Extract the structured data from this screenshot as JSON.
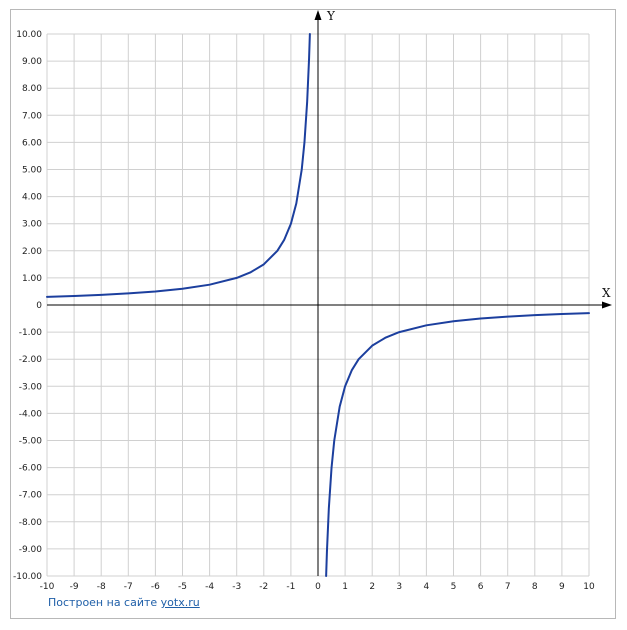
{
  "chart_data": {
    "type": "line",
    "title": "",
    "xlabel": "X",
    "ylabel": "Y",
    "xlim": [
      -10,
      10
    ],
    "ylim": [
      -10,
      10
    ],
    "grid": true,
    "x_ticks": [
      "-10",
      "-9",
      "-8",
      "-7",
      "-6",
      "-5",
      "-4",
      "-3",
      "-2",
      "-1",
      "0",
      "1",
      "2",
      "3",
      "4",
      "5",
      "6",
      "7",
      "8",
      "9",
      "10"
    ],
    "y_ticks": [
      "10.00",
      "9.00",
      "8.00",
      "7.00",
      "6.00",
      "5.00",
      "4.00",
      "3.00",
      "2.00",
      "1.00",
      "0",
      "-1.00",
      "-2.00",
      "-3.00",
      "-4.00",
      "-5.00",
      "-6.00",
      "-7.00",
      "-8.00",
      "-9.00",
      "-10.00"
    ],
    "series": [
      {
        "color": "#1c3f9e",
        "segments": [
          [
            [
              -10,
              0.3
            ],
            [
              -9,
              0.333
            ],
            [
              -8,
              0.375
            ],
            [
              -7,
              0.429
            ],
            [
              -6,
              0.5
            ],
            [
              -5,
              0.6
            ],
            [
              -4,
              0.75
            ],
            [
              -3,
              1.0
            ],
            [
              -2.5,
              1.2
            ],
            [
              -2,
              1.5
            ],
            [
              -1.5,
              2.0
            ],
            [
              -1.25,
              2.4
            ],
            [
              -1,
              3.0
            ],
            [
              -0.8,
              3.75
            ],
            [
              -0.6,
              5.0
            ],
            [
              -0.5,
              6.0
            ],
            [
              -0.4,
              7.5
            ],
            [
              -0.33,
              9.09
            ],
            [
              -0.3,
              10.0
            ]
          ],
          [
            [
              0.3,
              -10.0
            ],
            [
              0.33,
              -9.09
            ],
            [
              0.4,
              -7.5
            ],
            [
              0.5,
              -6.0
            ],
            [
              0.6,
              -5.0
            ],
            [
              0.8,
              -3.75
            ],
            [
              1,
              -3.0
            ],
            [
              1.25,
              -2.4
            ],
            [
              1.5,
              -2.0
            ],
            [
              2,
              -1.5
            ],
            [
              2.5,
              -1.2
            ],
            [
              3,
              -1.0
            ],
            [
              4,
              -0.75
            ],
            [
              5,
              -0.6
            ],
            [
              6,
              -0.5
            ],
            [
              7,
              -0.429
            ],
            [
              8,
              -0.375
            ],
            [
              9,
              -0.333
            ],
            [
              10,
              -0.3
            ]
          ]
        ]
      }
    ]
  },
  "credit": {
    "text": "Построен на сайте ",
    "link": "yotx.ru"
  }
}
